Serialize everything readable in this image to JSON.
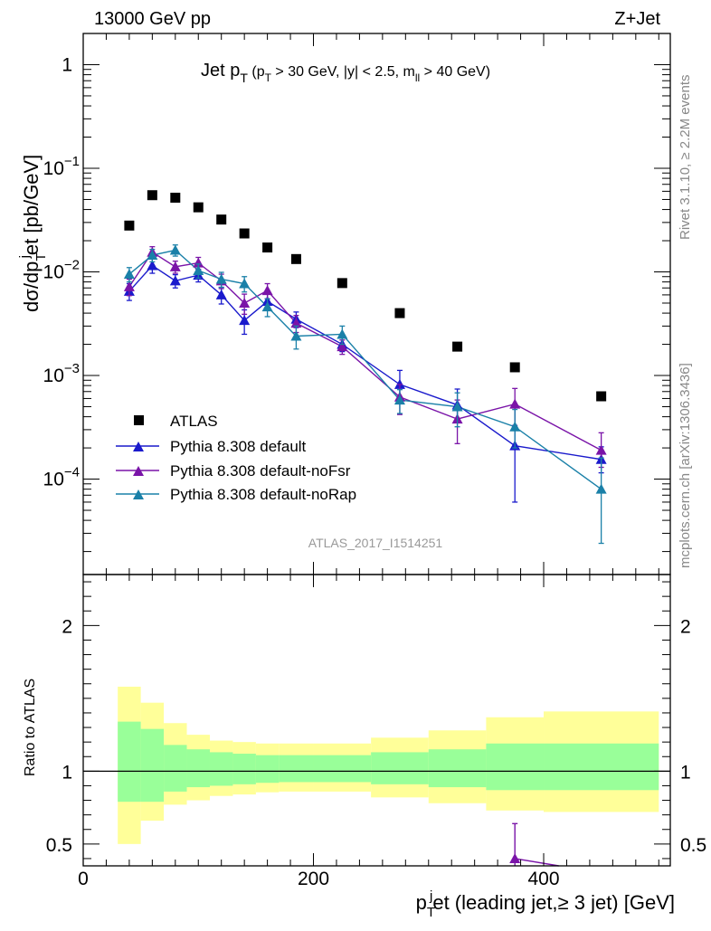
{
  "header": {
    "left": "13000 GeV pp",
    "right": "Z+Jet"
  },
  "side_text": {
    "rivet": "Rivet 3.1.10, ≥ 2.2M events",
    "mcplots": "mcplots.cern.ch [arXiv:1306.3436]"
  },
  "plot_title": {
    "main": "Jet p",
    "main_sub": "T",
    "cuts_a": "(p",
    "cuts_a_sub": "T",
    "cuts_b": " > 30 GeV, |y| < 2.5, m",
    "cuts_b_sub": "ll",
    "cuts_c": " > 40 GeV)"
  },
  "analysis_tag": "ATLAS_2017_I1514251",
  "y_axis_title": {
    "p1": "dσ/dp",
    "sub1": "T",
    "sup": "j",
    "p2": "et [pb/GeV]"
  },
  "ratio_axis_title": "Ratio to ATLAS",
  "x_axis_title": {
    "p1": "p",
    "sub": "T",
    "sup": "j",
    "p2": "et (leading jet,≥ 3 jet) [GeV]"
  },
  "legend": {
    "atlas": "ATLAS",
    "s1": "Pythia 8.308 default",
    "s2": "Pythia 8.308 default-noFsr",
    "s3": "Pythia 8.308 default-noRap"
  },
  "x_ticks": [
    "0",
    "200",
    "400"
  ],
  "y_ticks_main": [
    {
      "v": 1,
      "base": "1",
      "exp": ""
    },
    {
      "v": 0.1,
      "base": "10",
      "exp": "−1"
    },
    {
      "v": 0.01,
      "base": "10",
      "exp": "−2"
    },
    {
      "v": 0.001,
      "base": "10",
      "exp": "−3"
    },
    {
      "v": 0.0001,
      "base": "10",
      "exp": "−4"
    }
  ],
  "y_ticks_ratio": [
    "2",
    "1",
    "0.5"
  ],
  "chart_data": [
    {
      "type": "scatter",
      "title": "Jet pT (pT > 30 GeV, |y| < 2.5, mll > 40 GeV)",
      "xlabel": "pTjet (leading jet,≥ 3 jet) [GeV]",
      "ylabel": "dσ/dpTjet [pb/GeV]",
      "xlim": [
        0,
        510
      ],
      "ylim": [
        1.2e-05,
        2
      ],
      "yscale": "log",
      "legend_position": "lower-left",
      "colors": {
        "ATLAS": "#000000",
        "default": "#1a1acc",
        "noFsr": "#7a14a8",
        "noRap": "#1a80a8"
      },
      "x": [
        40,
        60,
        80,
        100,
        120,
        140,
        160,
        185,
        225,
        275,
        325,
        375,
        450
      ],
      "series": [
        {
          "name": "ATLAS",
          "marker": "square",
          "values": [
            0.028,
            0.055,
            0.052,
            0.042,
            0.032,
            0.0235,
            0.0172,
            0.0133,
            0.0078,
            0.004,
            0.0019,
            0.0012,
            0.00063
          ]
        },
        {
          "name": "Pythia 8.308 default",
          "marker": "triangle",
          "values": [
            0.0065,
            0.0115,
            0.0082,
            0.0093,
            0.006,
            0.0034,
            0.0052,
            0.0035,
            0.002,
            0.00082,
            0.00052,
            0.00021,
            0.000155
          ],
          "err_low": [
            0.0012,
            0.0018,
            0.0012,
            0.0013,
            0.0011,
            0.0009,
            0.0009,
            0.0006,
            0.0003,
            0.00025,
            0.00017,
            0.00015,
            4e-05
          ],
          "err_high": [
            0.0012,
            0.0018,
            0.0012,
            0.0013,
            0.0011,
            0.0009,
            0.0009,
            0.0006,
            0.0003,
            0.0003,
            0.00022,
            0.0003,
            5e-05
          ]
        },
        {
          "name": "Pythia 8.308 default-noFsr",
          "marker": "triangle",
          "values": [
            0.0072,
            0.0155,
            0.0112,
            0.0122,
            0.0082,
            0.005,
            0.0066,
            0.0032,
            0.0019,
            0.00062,
            0.00038,
            0.00053,
            0.00019
          ],
          "err_low": [
            0.0013,
            0.002,
            0.0015,
            0.0016,
            0.0013,
            0.0011,
            0.0011,
            0.0006,
            0.0003,
            0.0002,
            0.00016,
            0.0002,
            6e-05
          ],
          "err_high": [
            0.0013,
            0.002,
            0.0015,
            0.0016,
            0.0013,
            0.0011,
            0.0011,
            0.0006,
            0.0003,
            0.0002,
            0.0002,
            0.00022,
            9e-05
          ]
        },
        {
          "name": "Pythia 8.308 default-noRap",
          "marker": "triangle",
          "values": [
            0.0095,
            0.0145,
            0.0162,
            0.0103,
            0.0085,
            0.0077,
            0.0046,
            0.0024,
            0.0025,
            0.00058,
            0.0005,
            0.00032,
            8e-05
          ],
          "err_low": [
            0.0015,
            0.002,
            0.002,
            0.0016,
            0.0014,
            0.0013,
            0.0009,
            0.0006,
            0.0005,
            0.00015,
            0.00018,
            0.00012,
            5.6e-05
          ],
          "err_high": [
            0.0015,
            0.002,
            0.002,
            0.0016,
            0.0014,
            0.0013,
            0.0009,
            0.0006,
            0.0005,
            0.00015,
            0.00018,
            0.00015,
            8e-05
          ]
        }
      ]
    },
    {
      "type": "area",
      "title": "",
      "xlabel": "pTjet (leading jet,≥ 3 jet) [GeV]",
      "ylabel": "Ratio to ATLAS",
      "xlim": [
        0,
        510
      ],
      "ylim": [
        0.35,
        2.35
      ],
      "bin_edges": [
        30,
        50,
        70,
        90,
        110,
        130,
        150,
        170,
        200,
        250,
        300,
        350,
        400,
        500
      ],
      "band_inner": {
        "color": "#99ff99",
        "low": [
          0.79,
          0.79,
          0.86,
          0.89,
          0.9,
          0.91,
          0.92,
          0.925,
          0.925,
          0.91,
          0.89,
          0.87,
          0.87
        ],
        "high": [
          1.34,
          1.29,
          1.18,
          1.15,
          1.13,
          1.12,
          1.11,
          1.11,
          1.11,
          1.13,
          1.15,
          1.19,
          1.19
        ]
      },
      "band_outer": {
        "color": "#ffff99",
        "low": [
          0.5,
          0.66,
          0.77,
          0.8,
          0.83,
          0.84,
          0.855,
          0.86,
          0.86,
          0.82,
          0.78,
          0.73,
          0.72
        ],
        "high": [
          1.58,
          1.47,
          1.33,
          1.25,
          1.21,
          1.2,
          1.19,
          1.19,
          1.19,
          1.23,
          1.28,
          1.37,
          1.41
        ]
      },
      "reference_line": 1,
      "overflow_point": {
        "series": "Pythia 8.308 default-noFsr",
        "x": 375,
        "value": 0.4,
        "err_low": 0.05,
        "err_high": 0.24
      }
    }
  ]
}
